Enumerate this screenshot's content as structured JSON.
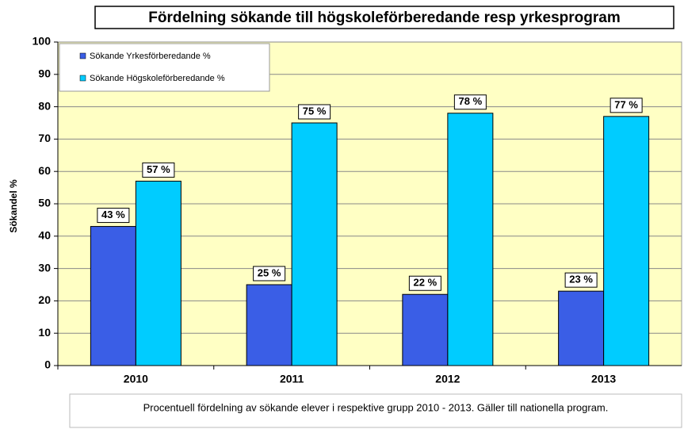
{
  "chart_data": {
    "type": "bar",
    "title": "Fördelning sökande till högskoleförberedande resp yrkesprogram",
    "y_label": "Sökandel %",
    "categories": [
      "2010",
      "2011",
      "2012",
      "2013"
    ],
    "series": [
      {
        "name": "Sökande Yrkesförberedande %",
        "color": "#3a5ee6",
        "values": [
          43,
          25,
          22,
          23
        ],
        "value_labels": [
          "43 %",
          "25 %",
          "22 %",
          "23 %"
        ]
      },
      {
        "name": "Sökande Högskoleförberedande %",
        "color": "#00ccff",
        "values": [
          57,
          75,
          78,
          77
        ],
        "value_labels": [
          "57 %",
          "75 %",
          "78 %",
          "77 %"
        ]
      }
    ],
    "ylim": [
      0,
      100
    ],
    "yticks": [
      0,
      10,
      20,
      30,
      40,
      50,
      60,
      70,
      80,
      90,
      100
    ],
    "grid": true,
    "legend": "upper left",
    "footnote": "Procentuell fördelning av sökande elever i respektive grupp 2010 - 2013. Gäller till nationella program."
  }
}
